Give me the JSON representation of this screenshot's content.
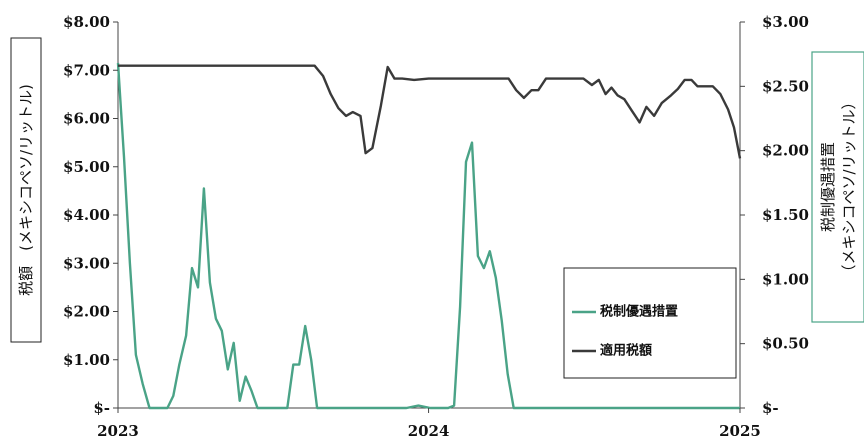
{
  "chart_data": {
    "type": "line",
    "title": "",
    "x_ticks": [
      "2023",
      "2024",
      "2025"
    ],
    "x_range": [
      "2023-01-01",
      "2025-01-01"
    ],
    "y_left": {
      "label": "税額　(メキシコペソ/リットル)",
      "range": [
        0,
        8
      ],
      "ticks": [
        0,
        1,
        2,
        3,
        4,
        5,
        6,
        7,
        8
      ],
      "tick_labels": [
        "$-",
        "$1.00",
        "$2.00",
        "$3.00",
        "$4.00",
        "$5.00",
        "$6.00",
        "$7.00",
        "$8.00"
      ]
    },
    "y_right": {
      "label_line1": "税制優遇措置",
      "label_line2": "（メキシコペソ/リットル）",
      "range": [
        0,
        3
      ],
      "ticks": [
        0,
        0.5,
        1,
        1.5,
        2,
        2.5,
        3
      ],
      "tick_labels": [
        "$-",
        "$0.50",
        "$1.00",
        "$1.50",
        "$2.00",
        "$2.50",
        "$3.00"
      ]
    },
    "grid": false,
    "legend_position": "bottom-right",
    "series": [
      {
        "name": "税制優遇措置",
        "axis": "left",
        "color": "#4aa387",
        "points": [
          [
            "2023-01-01",
            7.15
          ],
          [
            "2023-01-08",
            5.2
          ],
          [
            "2023-01-15",
            3.0
          ],
          [
            "2023-01-22",
            1.1
          ],
          [
            "2023-01-30",
            0.5
          ],
          [
            "2023-02-07",
            0.0
          ],
          [
            "2023-02-14",
            0.0
          ],
          [
            "2023-02-21",
            0.0
          ],
          [
            "2023-02-28",
            0.0
          ],
          [
            "2023-03-07",
            0.25
          ],
          [
            "2023-03-14",
            0.9
          ],
          [
            "2023-03-22",
            1.5
          ],
          [
            "2023-03-29",
            2.9
          ],
          [
            "2023-04-05",
            2.5
          ],
          [
            "2023-04-12",
            4.55
          ],
          [
            "2023-04-19",
            2.6
          ],
          [
            "2023-04-26",
            1.85
          ],
          [
            "2023-05-03",
            1.6
          ],
          [
            "2023-05-10",
            0.8
          ],
          [
            "2023-05-17",
            1.35
          ],
          [
            "2023-05-24",
            0.15
          ],
          [
            "2023-05-31",
            0.65
          ],
          [
            "2023-06-07",
            0.35
          ],
          [
            "2023-06-14",
            0.0
          ],
          [
            "2023-06-21",
            0.0
          ],
          [
            "2023-07-05",
            0.0
          ],
          [
            "2023-07-19",
            0.0
          ],
          [
            "2023-07-26",
            0.9
          ],
          [
            "2023-08-02",
            0.9
          ],
          [
            "2023-08-09",
            1.7
          ],
          [
            "2023-08-16",
            1.0
          ],
          [
            "2023-08-23",
            0.0
          ],
          [
            "2023-09-06",
            0.0
          ],
          [
            "2023-10-04",
            0.0
          ],
          [
            "2023-11-01",
            0.0
          ],
          [
            "2023-12-06",
            0.0
          ],
          [
            "2023-12-20",
            0.05
          ],
          [
            "2024-01-03",
            0.0
          ],
          [
            "2024-01-24",
            0.0
          ],
          [
            "2024-01-31",
            0.05
          ],
          [
            "2024-02-07",
            2.1
          ],
          [
            "2024-02-14",
            5.1
          ],
          [
            "2024-02-21",
            5.5
          ],
          [
            "2024-02-28",
            3.15
          ],
          [
            "2024-03-06",
            2.9
          ],
          [
            "2024-03-13",
            3.25
          ],
          [
            "2024-03-20",
            2.7
          ],
          [
            "2024-03-27",
            1.8
          ],
          [
            "2024-04-03",
            0.7
          ],
          [
            "2024-04-10",
            0.0
          ],
          [
            "2024-05-01",
            0.0
          ],
          [
            "2024-07-03",
            0.0
          ],
          [
            "2024-09-04",
            0.0
          ],
          [
            "2024-11-06",
            0.0
          ],
          [
            "2025-01-01",
            0.0
          ]
        ]
      },
      {
        "name": "適用税額",
        "axis": "right",
        "color": "#3a3a3a",
        "points": [
          [
            "2023-01-01",
            2.66
          ],
          [
            "2023-03-01",
            2.66
          ],
          [
            "2023-05-01",
            2.66
          ],
          [
            "2023-07-01",
            2.66
          ],
          [
            "2023-08-20",
            2.66
          ],
          [
            "2023-08-30",
            2.58
          ],
          [
            "2023-09-08",
            2.44
          ],
          [
            "2023-09-17",
            2.33
          ],
          [
            "2023-09-26",
            2.27
          ],
          [
            "2023-10-04",
            2.3
          ],
          [
            "2023-10-13",
            2.27
          ],
          [
            "2023-10-19",
            1.98
          ],
          [
            "2023-10-27",
            2.02
          ],
          [
            "2023-11-06",
            2.35
          ],
          [
            "2023-11-14",
            2.65
          ],
          [
            "2023-11-22",
            2.56
          ],
          [
            "2023-12-01",
            2.56
          ],
          [
            "2023-12-15",
            2.55
          ],
          [
            "2024-01-01",
            2.56
          ],
          [
            "2024-02-01",
            2.56
          ],
          [
            "2024-03-01",
            2.56
          ],
          [
            "2024-04-04",
            2.56
          ],
          [
            "2024-04-13",
            2.47
          ],
          [
            "2024-04-22",
            2.41
          ],
          [
            "2024-05-01",
            2.47
          ],
          [
            "2024-05-09",
            2.47
          ],
          [
            "2024-05-18",
            2.56
          ],
          [
            "2024-06-01",
            2.56
          ],
          [
            "2024-06-20",
            2.56
          ],
          [
            "2024-07-01",
            2.56
          ],
          [
            "2024-07-11",
            2.51
          ],
          [
            "2024-07-19",
            2.55
          ],
          [
            "2024-07-27",
            2.44
          ],
          [
            "2024-08-03",
            2.49
          ],
          [
            "2024-08-10",
            2.43
          ],
          [
            "2024-08-18",
            2.4
          ],
          [
            "2024-08-27",
            2.31
          ],
          [
            "2024-09-05",
            2.22
          ],
          [
            "2024-09-13",
            2.34
          ],
          [
            "2024-09-22",
            2.27
          ],
          [
            "2024-10-01",
            2.37
          ],
          [
            "2024-10-12",
            2.43
          ],
          [
            "2024-10-20",
            2.48
          ],
          [
            "2024-10-28",
            2.55
          ],
          [
            "2024-11-05",
            2.55
          ],
          [
            "2024-11-12",
            2.5
          ],
          [
            "2024-11-20",
            2.5
          ],
          [
            "2024-11-30",
            2.5
          ],
          [
            "2024-12-09",
            2.44
          ],
          [
            "2024-12-18",
            2.32
          ],
          [
            "2024-12-25",
            2.18
          ],
          [
            "2025-01-01",
            1.94
          ]
        ]
      }
    ]
  }
}
